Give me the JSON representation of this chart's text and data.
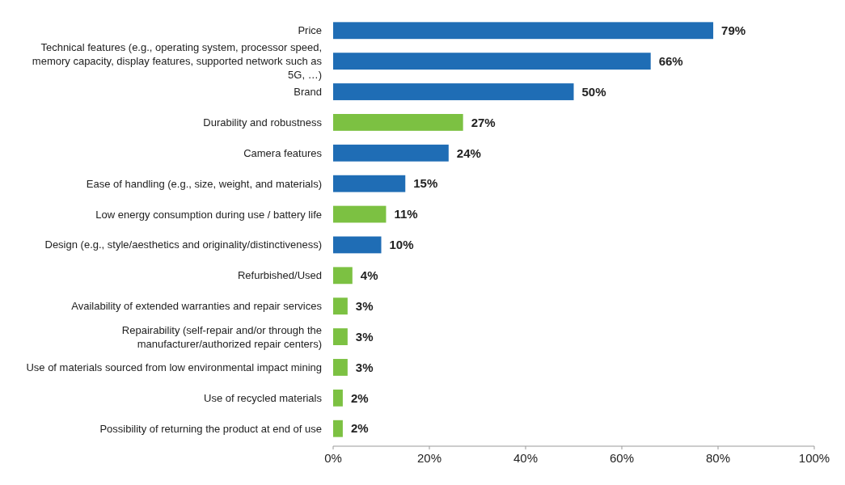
{
  "chart_data": {
    "type": "bar",
    "orientation": "horizontal",
    "categories": [
      "Price",
      "Technical features (e.g., operating system, processor speed, memory capacity, display features, supported network such as 5G, …)",
      "Brand",
      "Durability and robustness",
      "Camera features",
      "Ease of handling (e.g., size, weight, and materials)",
      "Low energy consumption during use / battery life",
      "Design (e.g., style/aesthetics and originality/distinctiveness)",
      "Refurbished/Used",
      "Availability of extended warranties and repair services",
      "Repairability (self-repair and/or through the manufacturer/authorized repair centers)",
      "Use of materials sourced from low environmental impact mining",
      "Use of recycled materials",
      "Possibility of returning the product at end of use"
    ],
    "values": [
      79,
      66,
      50,
      27,
      24,
      15,
      11,
      10,
      4,
      3,
      3,
      3,
      2,
      2
    ],
    "value_labels": [
      "79%",
      "66%",
      "50%",
      "27%",
      "24%",
      "15%",
      "11%",
      "10%",
      "4%",
      "3%",
      "3%",
      "3%",
      "2%",
      "2%"
    ],
    "colors": [
      "#1f6db5",
      "#1f6db5",
      "#1f6db5",
      "#7cc142",
      "#1f6db5",
      "#1f6db5",
      "#7cc142",
      "#1f6db5",
      "#7cc142",
      "#7cc142",
      "#7cc142",
      "#7cc142",
      "#7cc142",
      "#7cc142"
    ],
    "xlim": [
      0,
      100
    ],
    "xticks": [
      {
        "value": 0,
        "label": "0%"
      },
      {
        "value": 20,
        "label": "20%"
      },
      {
        "value": 40,
        "label": "40%"
      },
      {
        "value": 60,
        "label": "60%"
      },
      {
        "value": 80,
        "label": "80%"
      },
      {
        "value": 100,
        "label": "100%"
      }
    ],
    "grid": false
  }
}
